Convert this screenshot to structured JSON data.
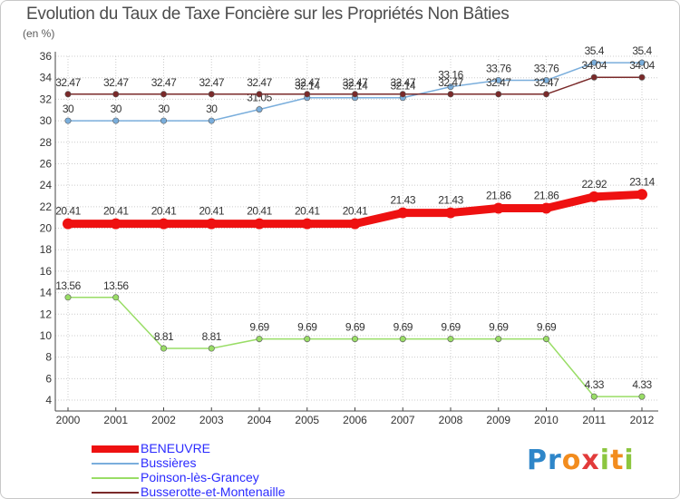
{
  "title": "Evolution du Taux de Taxe Foncière sur les Propriétés Non Bâties",
  "unit_label": "(en %)",
  "logo": {
    "text": "Proxiti",
    "letters": [
      "P",
      "r",
      "o",
      "x",
      "i",
      "t",
      "i"
    ],
    "colors": [
      "#2e86c9",
      "#2e86c9",
      "#f28c1e",
      "#e23b3b",
      "#8cc63f",
      "#f28c1e",
      "#8cc63f"
    ]
  },
  "chart_data": {
    "type": "line",
    "title": "Evolution du Taux de Taxe Foncière sur les Propriétés Non Bâties",
    "ylabel": "(en %)",
    "xlabel": "",
    "x": [
      "2000",
      "2001",
      "2002",
      "2003",
      "2004",
      "2005",
      "2006",
      "2007",
      "2008",
      "2009",
      "2010",
      "2011",
      "2012"
    ],
    "ylim": [
      4,
      36
    ],
    "yticks": [
      "4",
      "6",
      "8",
      "10",
      "12",
      "14",
      "16",
      "18",
      "20",
      "22",
      "24",
      "26",
      "28",
      "30",
      "32",
      "34",
      "36"
    ],
    "grid": true,
    "legend_position": "bottom-left",
    "series": [
      {
        "name": "BENEUVRE",
        "color": "#ee1111",
        "values": [
          20.41,
          20.41,
          20.41,
          20.41,
          20.41,
          20.41,
          20.41,
          21.43,
          21.43,
          21.86,
          21.86,
          22.92,
          23.14
        ],
        "labels": [
          "20.41",
          "20.41",
          "20.41",
          "20.41",
          "20.41",
          "20.41",
          "20.41",
          "21.43",
          "21.43",
          "21.86",
          "21.86",
          "22.92",
          "23.14"
        ]
      },
      {
        "name": "Bussières",
        "color": "#7aaedc",
        "values": [
          30,
          30,
          30,
          30,
          31.05,
          32.14,
          32.14,
          32.14,
          33.16,
          33.76,
          33.76,
          35.4,
          35.4
        ],
        "labels": [
          "30",
          "30",
          "30",
          "30",
          "31.05",
          "32.14",
          "32.14",
          "32.14",
          "33.16",
          "33.76",
          "33.76",
          "35.4",
          "35.4"
        ]
      },
      {
        "name": "Poinson-lès-Grancey",
        "color": "#99dd66",
        "values": [
          13.56,
          13.56,
          8.81,
          8.81,
          9.69,
          9.69,
          9.69,
          9.69,
          9.69,
          9.69,
          9.69,
          4.33,
          4.33
        ],
        "labels": [
          "13.56",
          "13.56",
          "8.81",
          "8.81",
          "9.69",
          "9.69",
          "9.69",
          "9.69",
          "9.69",
          "9.69",
          "9.69",
          "4.33",
          "4.33"
        ]
      },
      {
        "name": "Busserotte-et-Montenaille",
        "color": "#7a2a2a",
        "values": [
          32.47,
          32.47,
          32.47,
          32.47,
          32.47,
          32.47,
          32.47,
          32.47,
          32.47,
          32.47,
          32.47,
          34.04,
          34.04
        ],
        "labels": [
          "32.47",
          "32.47",
          "32.47",
          "32.47",
          "32.47",
          "32.47",
          "32.47",
          "32.47",
          "32.47",
          "32.47",
          "32.47",
          "34.04",
          "34.04"
        ]
      }
    ]
  }
}
